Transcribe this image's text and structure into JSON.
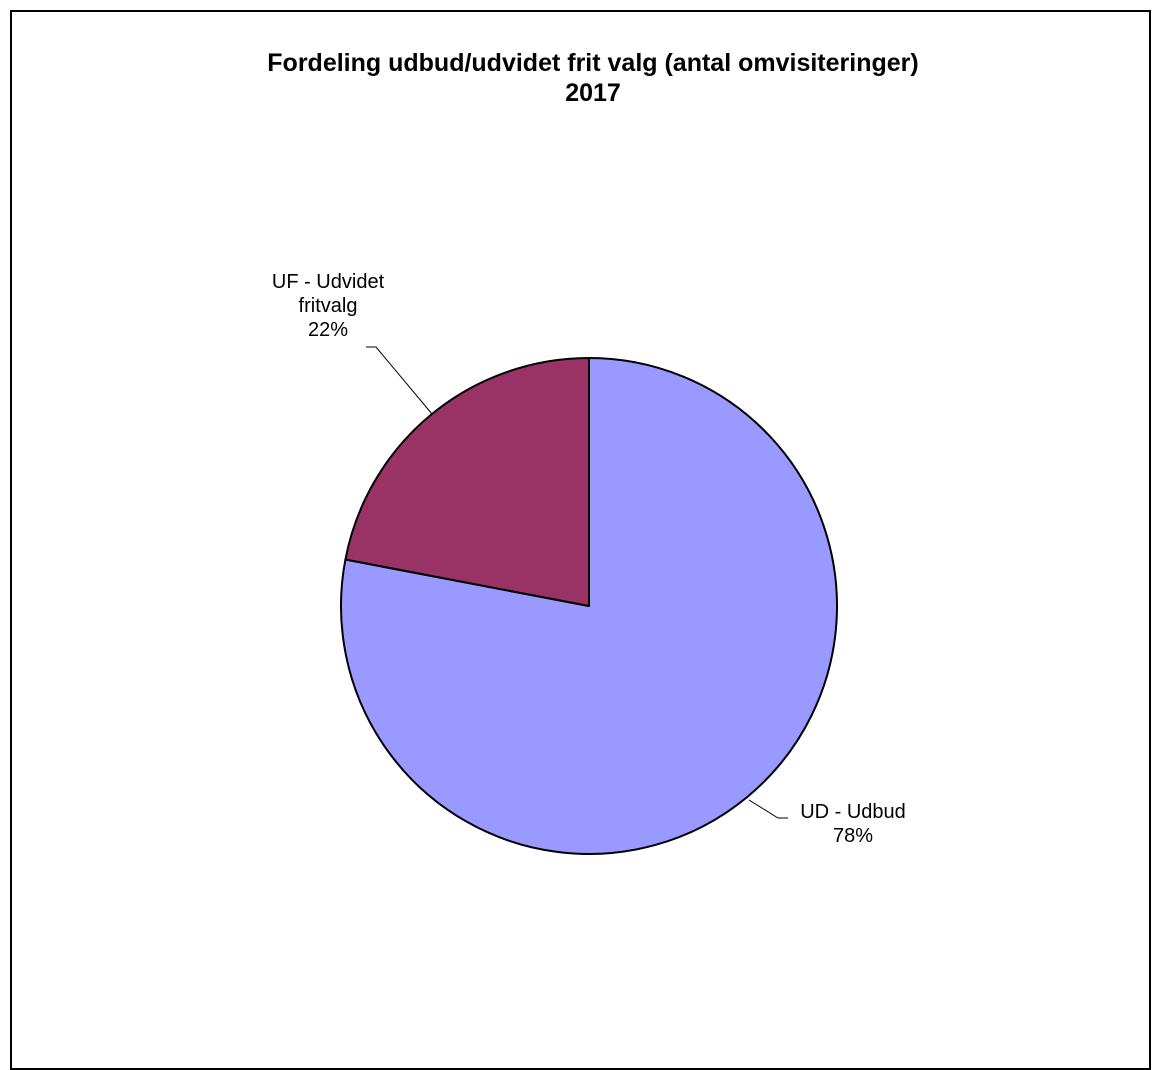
{
  "chart_data": {
    "type": "pie",
    "title_lines": [
      "Fordeling udbud/udvidet frit valg (antal omvisiteringer)",
      "2017"
    ],
    "slices": [
      {
        "name_lines": [
          "UD - Udbud"
        ],
        "value": 78,
        "percent_label": "78%",
        "color": "#9999FF"
      },
      {
        "name_lines": [
          "UF - Udvidet",
          "fritvalg"
        ],
        "value": 22,
        "percent_label": "22%",
        "color": "#993366"
      }
    ],
    "start": "12 o'clock",
    "direction": "clockwise",
    "legend": "none"
  }
}
